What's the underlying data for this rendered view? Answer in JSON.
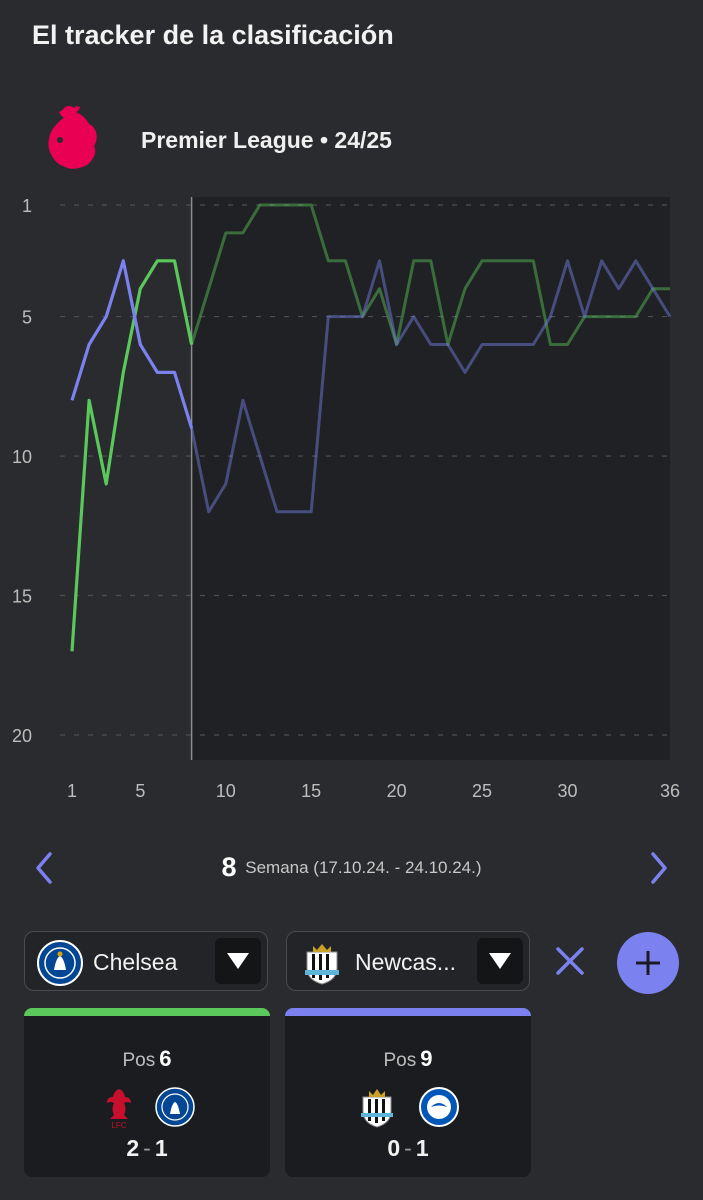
{
  "header": {
    "title": "El tracker de la clasificación"
  },
  "league": {
    "name": "Premier League • 24/25",
    "logo_icon": "premier-league-lion-icon",
    "logo_color": "#e90052"
  },
  "chart_data": {
    "type": "line",
    "x_ticks": [
      1,
      5,
      10,
      15,
      20,
      25,
      30,
      36
    ],
    "y_ticks": [
      1,
      5,
      10,
      15,
      20
    ],
    "xlim": [
      1,
      36
    ],
    "ylim": [
      1,
      20
    ],
    "y_inverted": true,
    "grid": "horizontal dashed",
    "highlighted_week": 8,
    "series": [
      {
        "color": "#5bc85b",
        "x": [
          1,
          2,
          3,
          4,
          5,
          6,
          7,
          8,
          9,
          10,
          11,
          12,
          13,
          14,
          15,
          16,
          17,
          18,
          19,
          20,
          21,
          22,
          23,
          24,
          25,
          26,
          27,
          28,
          29,
          30,
          31,
          32,
          33,
          34,
          35,
          36
        ],
        "values": [
          17,
          8,
          11,
          7,
          4,
          3,
          3,
          6,
          4,
          2,
          2,
          1,
          1,
          1,
          1,
          3,
          3,
          5,
          4,
          6,
          3,
          3,
          6,
          4,
          3,
          3,
          3,
          3,
          6,
          6,
          5,
          5,
          5,
          5,
          4,
          4
        ]
      },
      {
        "color": "#7b82f0",
        "x": [
          1,
          2,
          3,
          4,
          5,
          6,
          7,
          8,
          9,
          10,
          11,
          12,
          13,
          14,
          15,
          16,
          17,
          18,
          19,
          20,
          21,
          22,
          23,
          24,
          25,
          26,
          27,
          28,
          29,
          30,
          31,
          32,
          33,
          34,
          35,
          36
        ],
        "values": [
          8,
          6,
          5,
          3,
          6,
          7,
          7,
          9,
          12,
          11,
          8,
          10,
          12,
          12,
          12,
          5,
          5,
          5,
          3,
          6,
          5,
          6,
          6,
          7,
          6,
          6,
          6,
          6,
          5,
          3,
          5,
          3,
          4,
          3,
          4,
          5
        ]
      }
    ]
  },
  "week_nav": {
    "week_number": "8",
    "week_label": "Semana (17.10.24. - 24.10.24.)",
    "prev_icon": "chevron-left-icon",
    "next_icon": "chevron-right-icon",
    "accent": "#7b82f0"
  },
  "selectors": [
    {
      "team": "Chelsea",
      "crest_icon": "chelsea-crest-icon"
    },
    {
      "team": "Newcas...",
      "crest_icon": "newcastle-crest-icon"
    }
  ],
  "cards": [
    {
      "color": "#5bc85b",
      "pos_label": "Pos",
      "pos_value": "6",
      "home_icon": "liverpool-crest-icon",
      "away_icon": "chelsea-crest-icon",
      "home_score": "2",
      "away_score": "1"
    },
    {
      "color": "#7b82f0",
      "pos_label": "Pos",
      "pos_value": "9",
      "home_icon": "newcastle-crest-icon",
      "away_icon": "brighton-crest-icon",
      "home_score": "0",
      "away_score": "1"
    }
  ]
}
